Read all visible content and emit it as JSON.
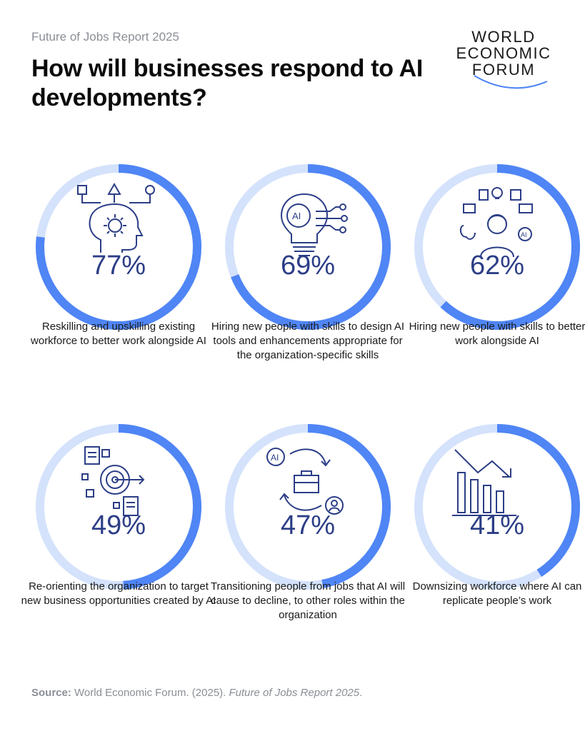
{
  "header": {
    "subtitle": "Future of Jobs Report 2025",
    "title": "How will businesses respond to AI developments?"
  },
  "logo": {
    "line1": "WORLD",
    "line2": "ECONOMIC",
    "line3": "FORUM"
  },
  "colors": {
    "accent": "#4f85f5",
    "track": "#d4e2fb",
    "pct_text": "#2c3e87"
  },
  "chart_data": {
    "type": "pie",
    "title": "How will businesses respond to AI developments?",
    "items": [
      {
        "value": 77,
        "display": "77%",
        "label": "Reskilling and upskilling existing workforce to better work alongside AI",
        "icon": "head-gear-icon"
      },
      {
        "value": 69,
        "display": "69%",
        "label": "Hiring new people with skills to design AI tools and enhancements appropriate for the organization-specific skills",
        "icon": "ai-lightbulb-icon"
      },
      {
        "value": 62,
        "display": "62%",
        "label": "Hiring new people with skills to better work alongside AI",
        "icon": "person-ai-tools-icon"
      },
      {
        "value": 49,
        "display": "49%",
        "label": "Re-orienting the organization to target new business opportunities created by AI",
        "icon": "target-documents-icon"
      },
      {
        "value": 47,
        "display": "47%",
        "label": "Transitioning people from jobs that AI will cause to decline, to other roles within the organization",
        "icon": "job-transition-icon"
      },
      {
        "value": 41,
        "display": "41%",
        "label": "Downsizing workforce where AI can replicate people’s work",
        "icon": "declining-bars-icon"
      }
    ]
  },
  "source": {
    "prefix": "Source:",
    "text": " World Economic Forum. (2025). ",
    "italic": "Future of Jobs Report 2025",
    "suffix": "."
  }
}
